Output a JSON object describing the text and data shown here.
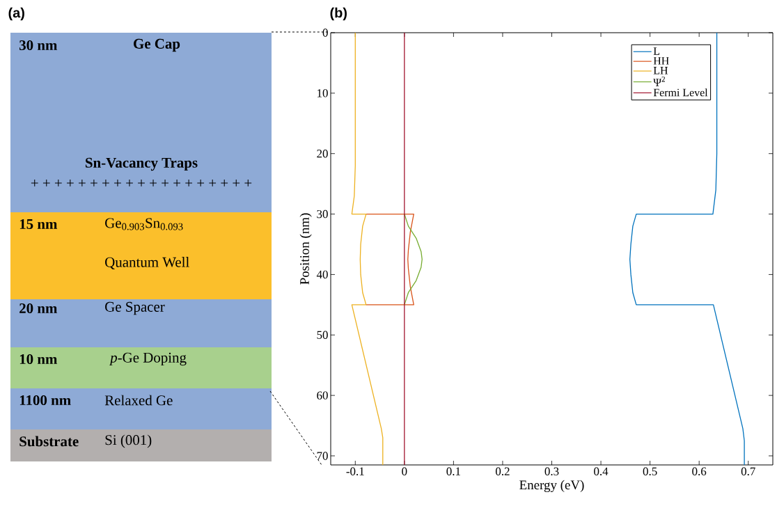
{
  "chart_data": [
    {
      "type": "other",
      "title": "(a)",
      "annotations": [
        "30 nm",
        "Ge Cap",
        "Sn-Vacancy Traps",
        "+ + + + + + + + + + + + + + + + + + +",
        "15 nm",
        "Ge$_{0.903}$Sn$_{0.093}$",
        "Quantum Well",
        "20 nm",
        "Ge Spacer",
        "10 nm",
        "*p*-Ge Doping",
        "1100 nm",
        "Relaxed Ge",
        "Substrate",
        "Si (001)"
      ]
    },
    {
      "type": "line",
      "title": "(b)",
      "xlabel": "Energy (eV)",
      "ylabel": "Position (nm)",
      "xlim": [
        -0.15,
        0.75
      ],
      "ylim": [
        71.5,
        0
      ],
      "xticks": [
        -0.1,
        0,
        0.1,
        0.2,
        0.3,
        0.4,
        0.5,
        0.6,
        0.7
      ],
      "yticks": [
        0,
        10,
        20,
        30,
        40,
        50,
        60,
        70
      ],
      "legend": "top right",
      "series": [
        {
          "name": "L",
          "color": "#0072bd",
          "x": [
            0.636,
            0.636,
            0.634,
            0.628,
            0.472,
            0.465,
            0.461,
            0.459,
            0.461,
            0.465,
            0.472,
            0.629,
            0.689,
            0.692,
            0.692
          ],
          "values": [
            0,
            20,
            26,
            30,
            30,
            32,
            35,
            37.5,
            40,
            43,
            45,
            45,
            65.5,
            67.5,
            71.5
          ]
        },
        {
          "name": "HH",
          "color": "#d95319",
          "x": [
            -0.078,
            0.019,
            0.012,
            0.008,
            0.007,
            0.008,
            0.012,
            0.019,
            -0.078
          ],
          "values": [
            30,
            30,
            33,
            36,
            37.5,
            39,
            42,
            45,
            45
          ]
        },
        {
          "name": "LH",
          "color": "#edb120",
          "x": [
            -0.1,
            -0.1,
            -0.102,
            -0.107,
            -0.078,
            -0.085,
            -0.089,
            -0.09,
            -0.089,
            -0.085,
            -0.078,
            -0.107,
            -0.047,
            -0.044,
            -0.044
          ],
          "values": [
            0,
            22,
            27,
            30,
            30,
            32,
            35,
            37.5,
            40,
            43,
            45,
            45,
            65.5,
            67,
            71.5
          ]
        },
        {
          "name": "Ψ$^{2}$",
          "color": "#77ac30",
          "x": [
            0,
            0.008,
            0.024,
            0.034,
            0.036,
            0.034,
            0.024,
            0.008,
            0
          ],
          "values": [
            30,
            32,
            34,
            36.2,
            37.5,
            38.8,
            41,
            43,
            45
          ]
        },
        {
          "name": "Fermi Level",
          "color": "#a2142f",
          "x": [
            0,
            0
          ],
          "values": [
            0,
            71.5
          ]
        }
      ]
    }
  ]
}
